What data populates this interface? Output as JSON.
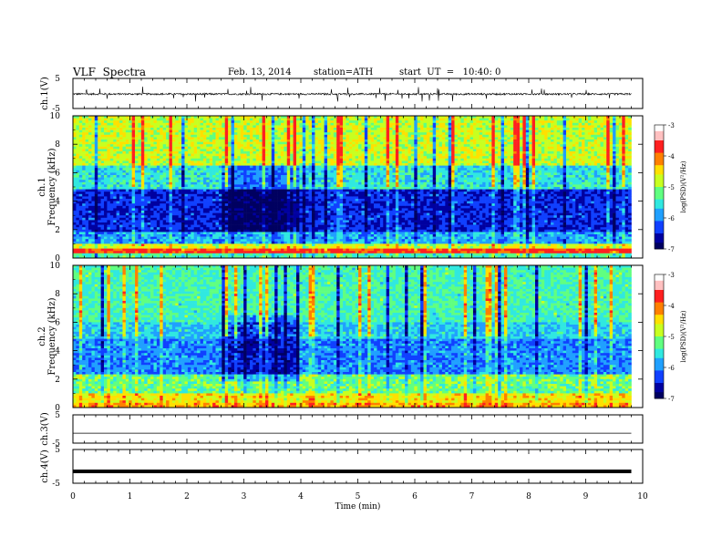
{
  "header": {
    "title": "VLF  Spectra",
    "date": "Feb. 13, 2014",
    "station": "station=ATH",
    "start": "start  UT  =   10:40: 0"
  },
  "colors": {
    "colormap": [
      "#000060",
      "#0000a0",
      "#1040ff",
      "#20a0ff",
      "#30e8e0",
      "#60ff80",
      "#c8ff20",
      "#ffe000",
      "#ff8000",
      "#ff2020",
      "#ffc0c0",
      "#ffffff"
    ]
  },
  "chart_data": [
    {
      "type": "line",
      "panel": "ch1-waveform",
      "ylabel": "ch.1(V)",
      "ylim": [
        -5,
        5
      ],
      "yticks": [
        "5",
        "-5"
      ],
      "description_values": {
        "baseline": -0.2,
        "typical_noise_amplitude": 0.6,
        "spike_max": 2.5,
        "spike_min": -2.5
      }
    },
    {
      "type": "heatmap",
      "panel": "ch1-spectrogram",
      "ylabel": "ch.1",
      "ylabel2": "Frequency  (kHz)",
      "ylim": [
        0,
        10
      ],
      "yticks": [
        "0",
        "2",
        "4",
        "6",
        "8",
        "10"
      ],
      "colorbar": {
        "label": "log(PSD)(V²/Hz)",
        "range": [
          -7,
          -3
        ],
        "ticks": [
          "-3",
          "-4",
          "-5",
          "-6",
          "-7"
        ]
      },
      "bands": [
        {
          "fmin": 0.3,
          "fmax": 0.6,
          "level": -3.0
        },
        {
          "fmin": 0.6,
          "fmax": 1.0,
          "level": -4.2
        },
        {
          "fmin": 1.0,
          "fmax": 1.8,
          "level": -5.6
        },
        {
          "fmin": 1.8,
          "fmax": 4.8,
          "level": -6.3
        },
        {
          "fmin": 4.8,
          "fmax": 6.5,
          "level": -5.2
        },
        {
          "fmin": 6.5,
          "fmax": 10.0,
          "level": -4.3
        }
      ],
      "quiet_interval_min": [
        2.6,
        4.0
      ]
    },
    {
      "type": "heatmap",
      "panel": "ch2-spectrogram",
      "ylabel": "ch.2",
      "ylabel2": "Frequency  (kHz)",
      "ylim": [
        0,
        10
      ],
      "yticks": [
        "0",
        "2",
        "4",
        "6",
        "8",
        "10"
      ],
      "colorbar": {
        "label": "log(PSD)(V²/Hz)",
        "range": [
          -7,
          -3
        ],
        "ticks": [
          "-3",
          "-4",
          "-5",
          "-6",
          "-7"
        ]
      },
      "bands": [
        {
          "fmin": 0.0,
          "fmax": 0.4,
          "level": -3.6
        },
        {
          "fmin": 0.4,
          "fmax": 1.0,
          "level": -4.0
        },
        {
          "fmin": 1.0,
          "fmax": 2.4,
          "level": -4.8
        },
        {
          "fmin": 2.4,
          "fmax": 4.8,
          "level": -5.8
        },
        {
          "fmin": 4.8,
          "fmax": 6.0,
          "level": -5.4
        },
        {
          "fmin": 6.0,
          "fmax": 10.0,
          "level": -5.0
        }
      ],
      "quiet_interval_min": [
        2.6,
        4.0
      ]
    },
    {
      "type": "line",
      "panel": "ch3-waveform",
      "ylabel": "ch.3(V)",
      "ylim": [
        -5,
        5
      ],
      "yticks": [
        "5",
        "-5"
      ],
      "description_values": {
        "baseline": -1.5
      }
    },
    {
      "type": "line",
      "panel": "ch4-waveform",
      "ylabel": "ch.4(V)",
      "ylim": [
        -5,
        5
      ],
      "yticks": [
        "5",
        "-5"
      ],
      "description_values": {
        "baseline": -1.5
      }
    }
  ],
  "xaxis": {
    "xlabel": "Time  (min)",
    "xlim": [
      0,
      10
    ],
    "ticks": [
      "0",
      "1",
      "2",
      "3",
      "4",
      "5",
      "6",
      "7",
      "8",
      "9",
      "10"
    ],
    "data_end_min": 9.8
  }
}
